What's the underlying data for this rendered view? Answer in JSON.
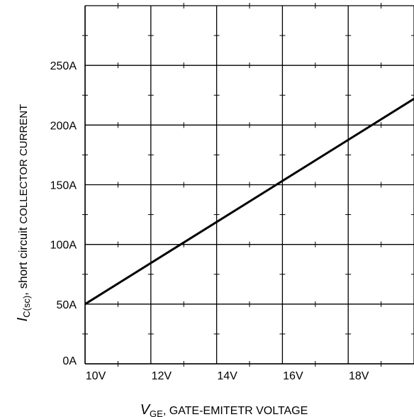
{
  "chart_data": {
    "type": "line",
    "title": "",
    "xlabel": {
      "symbol": "V",
      "subscript": "GE",
      "text": ", GATE-EMITETR VOLTAGE"
    },
    "ylabel": {
      "symbol": "I",
      "subscript": "C(sc)",
      "text_lower": ", short circuit ",
      "text_upper": "COLLECTOR CURRENT"
    },
    "x_unit": "V",
    "y_unit": "A",
    "xlim": [
      10,
      20
    ],
    "ylim": [
      0,
      300
    ],
    "x_ticks": [
      10,
      12,
      14,
      16,
      18
    ],
    "x_tick_labels": [
      "10V",
      "12V",
      "14V",
      "16V",
      "18V"
    ],
    "y_ticks": [
      0,
      50,
      100,
      150,
      200,
      250
    ],
    "y_tick_labels": [
      "0A",
      "50A",
      "100A",
      "150A",
      "200A",
      "250A"
    ],
    "x_grid_major": [
      10,
      12,
      14,
      16,
      18,
      20
    ],
    "y_grid_major": [
      0,
      50,
      100,
      150,
      200,
      250,
      300
    ],
    "x_minor_step": 1,
    "y_minor_step": 25,
    "grid": true,
    "series": [
      {
        "x": [
          10,
          20
        ],
        "y": [
          50,
          222
        ]
      }
    ]
  }
}
